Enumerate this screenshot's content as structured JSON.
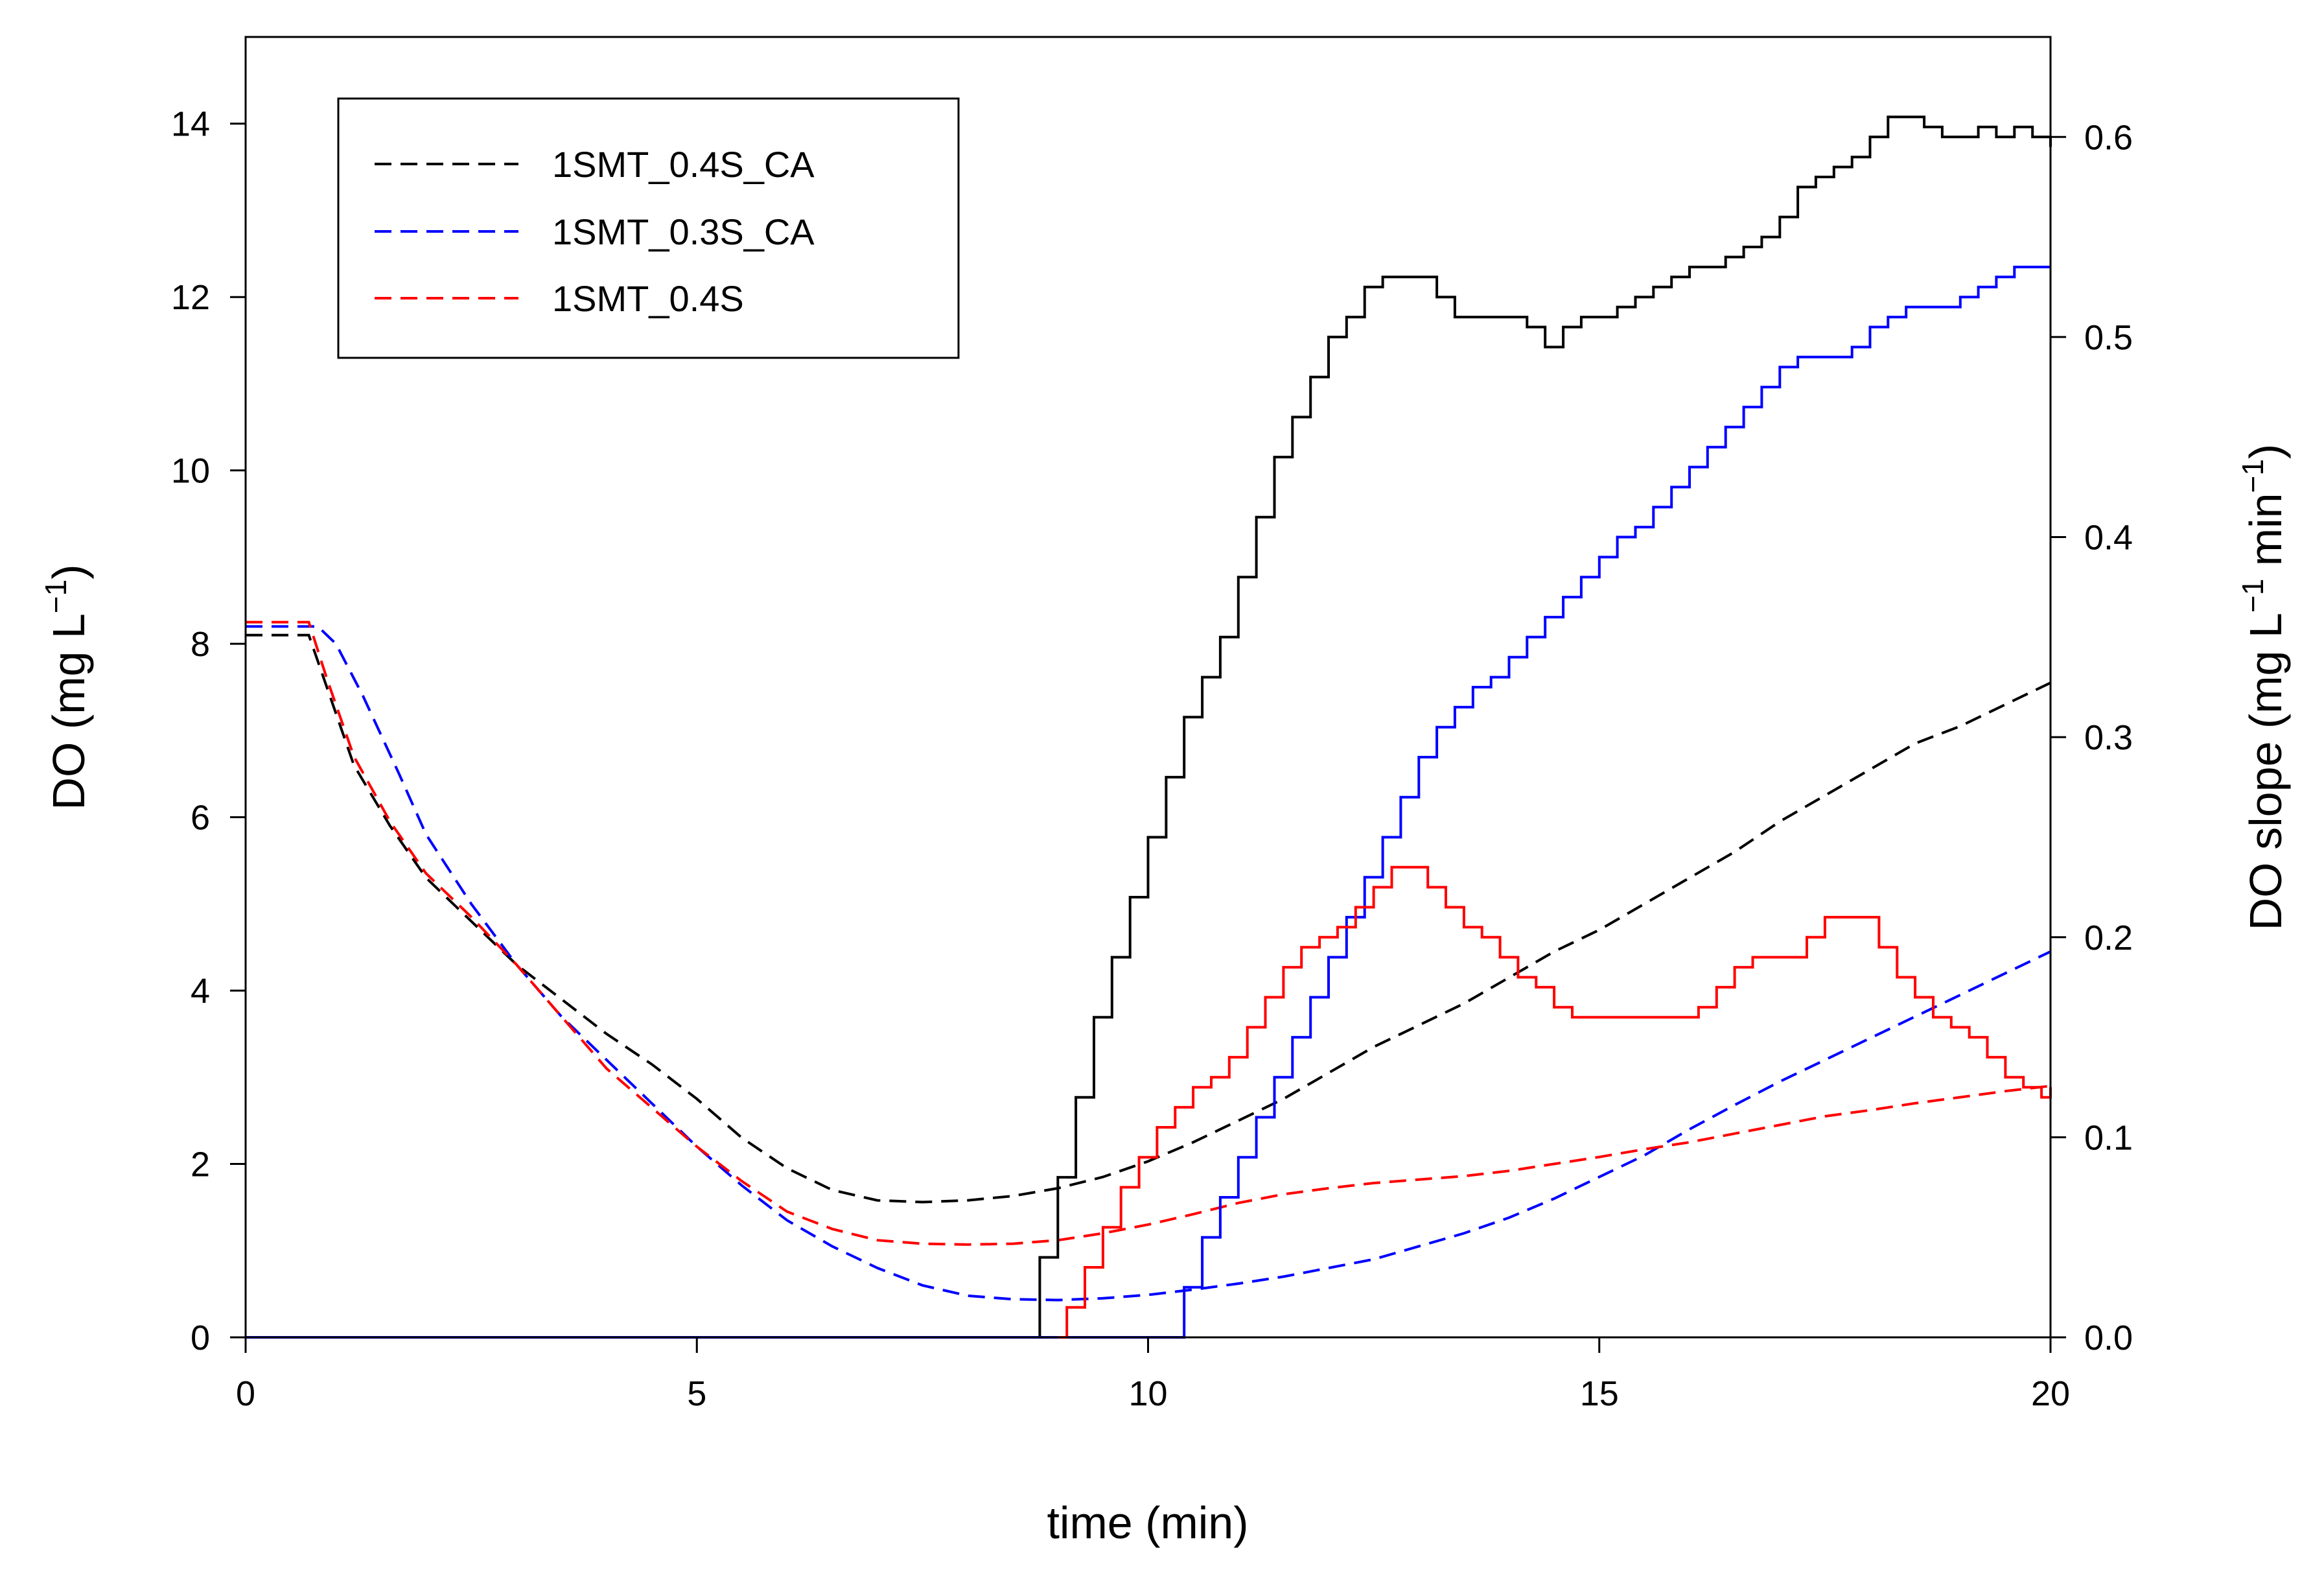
{
  "chart_data": {
    "type": "line",
    "title": "",
    "xlabel": "time (min)",
    "ylabel_left": "DO (mg L",
    "ylabel_left_sup": "−1",
    "ylabel_left_tail": ")",
    "ylabel_right": "DO slope (mg L",
    "ylabel_right_sup1": "−1",
    "ylabel_right_mid": " min",
    "ylabel_right_sup2": "−1",
    "ylabel_right_tail": ")",
    "xlim": [
      0,
      20
    ],
    "ylim_left": [
      0,
      15
    ],
    "ylim_right": [
      0,
      0.65
    ],
    "x_ticks": [
      0,
      5,
      10,
      15,
      20
    ],
    "x_tick_labels": [
      "0",
      "5",
      "10",
      "15",
      "20"
    ],
    "y_left_ticks": [
      0,
      2,
      4,
      6,
      8,
      10,
      12,
      14
    ],
    "y_left_tick_labels": [
      "0",
      "2",
      "4",
      "6",
      "8",
      "10",
      "12",
      "14"
    ],
    "y_right_ticks": [
      0,
      0.1,
      0.2,
      0.3,
      0.4,
      0.5,
      0.6
    ],
    "y_right_tick_labels": [
      "0.0",
      "0.1",
      "0.2",
      "0.3",
      "0.4",
      "0.5",
      "0.6"
    ],
    "legend_position": "top-left",
    "legend": [
      {
        "label": "1SMT_0.4S_CA",
        "color": "#000000"
      },
      {
        "label": "1SMT_0.3S_CA",
        "color": "#0000ff"
      },
      {
        "label": "1SMT_0.4S",
        "color": "#ff0000"
      }
    ],
    "series": [
      {
        "name": "1SMT_0.4S_CA DO",
        "axis": "left",
        "style": "dashed",
        "color": "#000000",
        "x": [
          0,
          0.7,
          0.9,
          1.2,
          1.6,
          2.0,
          2.5,
          3.0,
          3.5,
          4.0,
          4.5,
          5.0,
          5.5,
          6.0,
          6.5,
          7.0,
          7.5,
          8.0,
          8.5,
          9.0,
          9.5,
          10.0,
          10.5,
          11.0,
          11.5,
          12.0,
          12.5,
          13.0,
          13.5,
          14.0,
          14.5,
          15.0,
          15.5,
          16.0,
          16.5,
          17.0,
          17.5,
          18.0,
          18.5,
          19.0,
          19.5,
          20.0
        ],
        "y": [
          8.1,
          8.1,
          7.5,
          6.6,
          5.9,
          5.3,
          4.8,
          4.3,
          3.9,
          3.5,
          3.15,
          2.75,
          2.3,
          1.95,
          1.7,
          1.58,
          1.56,
          1.58,
          1.63,
          1.72,
          1.85,
          2.03,
          2.25,
          2.5,
          2.75,
          3.05,
          3.35,
          3.6,
          3.85,
          4.15,
          4.45,
          4.7,
          5.0,
          5.3,
          5.6,
          5.95,
          6.25,
          6.55,
          6.85,
          7.05,
          7.3,
          7.55
        ]
      },
      {
        "name": "1SMT_0.3S_CA DO",
        "axis": "left",
        "style": "dashed",
        "color": "#0000ff",
        "x": [
          0,
          0.8,
          1.0,
          1.3,
          1.7,
          2.0,
          2.5,
          3.0,
          3.5,
          4.0,
          4.5,
          5.0,
          5.5,
          6.0,
          6.5,
          7.0,
          7.5,
          8.0,
          8.5,
          9.0,
          9.5,
          10.0,
          10.5,
          11.0,
          11.5,
          12.0,
          12.5,
          13.0,
          13.5,
          14.0,
          14.5,
          15.0,
          15.5,
          16.0,
          16.5,
          17.0,
          17.5,
          18.0,
          18.5,
          19.0,
          19.5,
          20.0
        ],
        "y": [
          8.2,
          8.2,
          8.0,
          7.4,
          6.5,
          5.8,
          5.0,
          4.3,
          3.7,
          3.2,
          2.7,
          2.2,
          1.75,
          1.35,
          1.05,
          0.8,
          0.6,
          0.48,
          0.44,
          0.43,
          0.45,
          0.49,
          0.55,
          0.62,
          0.7,
          0.8,
          0.9,
          1.05,
          1.2,
          1.38,
          1.6,
          1.85,
          2.1,
          2.4,
          2.68,
          2.95,
          3.2,
          3.45,
          3.7,
          3.95,
          4.2,
          4.45
        ]
      },
      {
        "name": "1SMT_0.4S DO",
        "axis": "left",
        "style": "dashed",
        "color": "#ff0000",
        "x": [
          0,
          0.7,
          0.9,
          1.2,
          1.6,
          2.0,
          2.5,
          3.0,
          3.5,
          4.0,
          4.5,
          5.0,
          5.5,
          6.0,
          6.5,
          7.0,
          7.5,
          8.0,
          8.5,
          9.0,
          9.5,
          10.0,
          10.5,
          11.0,
          11.5,
          12.0,
          12.5,
          13.0,
          13.5,
          14.0,
          14.5,
          15.0,
          15.5,
          16.0,
          16.5,
          17.0,
          17.5,
          18.0,
          18.5,
          19.0,
          19.5,
          20.0
        ],
        "y": [
          8.25,
          8.25,
          7.6,
          6.7,
          5.95,
          5.35,
          4.85,
          4.3,
          3.7,
          3.1,
          2.65,
          2.2,
          1.8,
          1.45,
          1.25,
          1.12,
          1.08,
          1.07,
          1.08,
          1.12,
          1.2,
          1.3,
          1.42,
          1.55,
          1.65,
          1.72,
          1.78,
          1.82,
          1.86,
          1.92,
          2.0,
          2.08,
          2.17,
          2.25,
          2.35,
          2.45,
          2.55,
          2.62,
          2.7,
          2.77,
          2.84,
          2.9
        ]
      },
      {
        "name": "1SMT_0.4S_CA slope",
        "axis": "right",
        "style": "solid",
        "color": "#000000",
        "x": [
          8.7,
          8.8,
          9.0,
          9.2,
          9.4,
          9.6,
          9.8,
          10.0,
          10.2,
          10.4,
          10.6,
          10.8,
          11.0,
          11.2,
          11.4,
          11.6,
          11.8,
          12.0,
          12.2,
          12.4,
          12.6,
          12.8,
          13.0,
          13.2,
          13.4,
          13.6,
          13.8,
          14.0,
          14.2,
          14.4,
          14.6,
          14.8,
          15.0,
          15.2,
          15.4,
          15.6,
          15.8,
          16.0,
          16.2,
          16.4,
          16.6,
          16.8,
          17.0,
          17.2,
          17.4,
          17.6,
          17.8,
          18.0,
          18.2,
          18.4,
          18.6,
          18.8,
          19.0,
          19.2,
          19.4,
          19.6,
          19.8,
          20.0
        ],
        "y": [
          0.0,
          0.04,
          0.08,
          0.12,
          0.16,
          0.19,
          0.22,
          0.25,
          0.28,
          0.31,
          0.33,
          0.35,
          0.38,
          0.41,
          0.44,
          0.46,
          0.48,
          0.5,
          0.51,
          0.525,
          0.53,
          0.53,
          0.53,
          0.52,
          0.51,
          0.51,
          0.51,
          0.51,
          0.505,
          0.495,
          0.505,
          0.51,
          0.51,
          0.515,
          0.52,
          0.525,
          0.53,
          0.535,
          0.535,
          0.54,
          0.545,
          0.55,
          0.56,
          0.575,
          0.58,
          0.585,
          0.59,
          0.6,
          0.61,
          0.61,
          0.605,
          0.6,
          0.6,
          0.605,
          0.6,
          0.605,
          0.6,
          0.595
        ]
      },
      {
        "name": "1SMT_0.3S_CA slope",
        "axis": "right",
        "style": "solid",
        "color": "#0000ff",
        "x": [
          0,
          0.85,
          10.2,
          10.4,
          10.6,
          10.8,
          11.0,
          11.2,
          11.4,
          11.6,
          11.8,
          12.0,
          12.2,
          12.4,
          12.6,
          12.8,
          13.0,
          13.2,
          13.4,
          13.6,
          13.8,
          14.0,
          14.2,
          14.4,
          14.6,
          14.8,
          15.0,
          15.2,
          15.4,
          15.6,
          15.8,
          16.0,
          16.2,
          16.4,
          16.6,
          16.8,
          17.0,
          17.2,
          17.4,
          17.6,
          17.8,
          18.0,
          18.2,
          18.4,
          18.6,
          18.8,
          19.0,
          19.2,
          19.4,
          19.6,
          19.8,
          20.0
        ],
        "y": [
          0.0,
          0.0,
          0.0,
          0.025,
          0.05,
          0.07,
          0.09,
          0.11,
          0.13,
          0.15,
          0.17,
          0.19,
          0.21,
          0.23,
          0.25,
          0.27,
          0.29,
          0.305,
          0.315,
          0.325,
          0.33,
          0.34,
          0.35,
          0.36,
          0.37,
          0.38,
          0.39,
          0.4,
          0.405,
          0.415,
          0.425,
          0.435,
          0.445,
          0.455,
          0.465,
          0.475,
          0.485,
          0.49,
          0.49,
          0.49,
          0.495,
          0.505,
          0.51,
          0.515,
          0.515,
          0.515,
          0.52,
          0.525,
          0.53,
          0.535,
          0.535,
          0.535
        ]
      },
      {
        "name": "1SMT_0.4S slope",
        "axis": "right",
        "style": "solid",
        "color": "#ff0000",
        "x": [
          9.0,
          9.1,
          9.3,
          9.5,
          9.7,
          9.9,
          10.1,
          10.3,
          10.5,
          10.7,
          10.9,
          11.1,
          11.3,
          11.5,
          11.7,
          11.9,
          12.1,
          12.3,
          12.5,
          12.7,
          12.9,
          13.1,
          13.3,
          13.5,
          13.7,
          13.9,
          14.1,
          14.3,
          14.5,
          14.7,
          14.9,
          15.1,
          15.3,
          15.5,
          15.7,
          15.9,
          16.1,
          16.3,
          16.5,
          16.7,
          16.9,
          17.1,
          17.3,
          17.5,
          17.7,
          17.9,
          18.1,
          18.3,
          18.5,
          18.7,
          18.9,
          19.1,
          19.3,
          19.5,
          19.7,
          19.9,
          20.0
        ],
        "y": [
          0.0,
          0.015,
          0.035,
          0.055,
          0.075,
          0.09,
          0.105,
          0.115,
          0.125,
          0.13,
          0.14,
          0.155,
          0.17,
          0.185,
          0.195,
          0.2,
          0.205,
          0.215,
          0.225,
          0.235,
          0.235,
          0.225,
          0.215,
          0.205,
          0.2,
          0.19,
          0.18,
          0.175,
          0.165,
          0.16,
          0.16,
          0.16,
          0.16,
          0.16,
          0.16,
          0.16,
          0.165,
          0.175,
          0.185,
          0.19,
          0.19,
          0.19,
          0.2,
          0.21,
          0.21,
          0.21,
          0.195,
          0.18,
          0.17,
          0.16,
          0.155,
          0.15,
          0.14,
          0.13,
          0.125,
          0.12,
          0.125
        ]
      }
    ]
  }
}
